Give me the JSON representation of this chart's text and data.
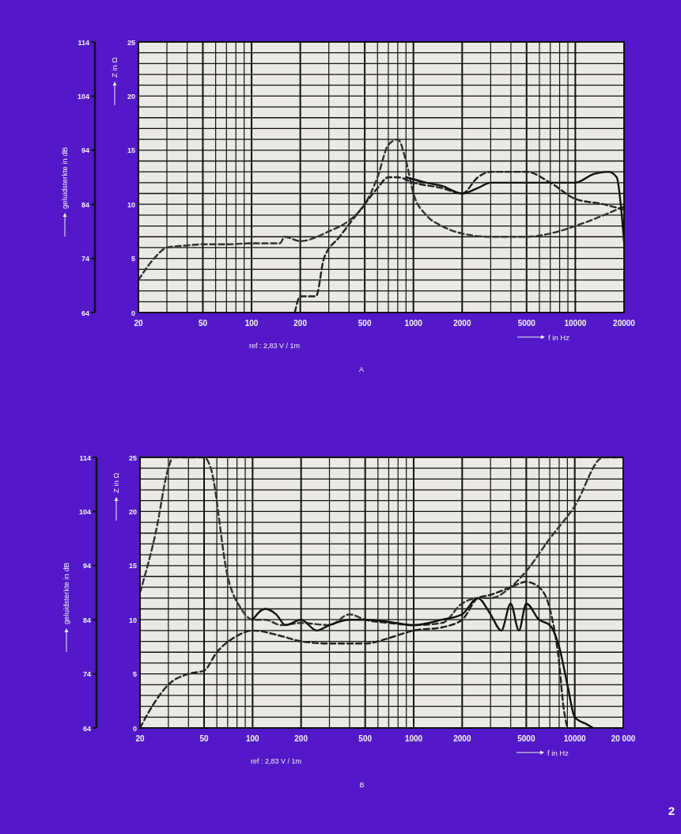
{
  "chart_data": [
    {
      "type": "line",
      "xlabel": "f in Hz",
      "ylabel": "geluidsterkte in dB",
      "y2label": "Z in Ω",
      "annotations": [
        "ref : 2,83 V / 1m",
        "A"
      ],
      "log": "x",
      "grid": true,
      "xlim": [
        20,
        20000
      ],
      "xticks": [
        20,
        50,
        100,
        200,
        500,
        1000,
        2000,
        5000,
        10000,
        20000
      ],
      "ylim": [
        64,
        114
      ],
      "yticks": [
        64,
        74,
        84,
        94,
        104,
        114
      ],
      "y2lim": [
        0,
        25
      ],
      "y2ticks": [
        0,
        5,
        10,
        15,
        20,
        25
      ],
      "series": [
        {
          "type": "line",
          "axis": "y2",
          "color": "#333333",
          "line_style": "dashed",
          "x": [
            20,
            25,
            30,
            40,
            50,
            70,
            100,
            150,
            160,
            200,
            300,
            400,
            500,
            600,
            700,
            800,
            900,
            1000,
            1200,
            1500,
            2000,
            3000,
            5000,
            7000,
            10000,
            15000,
            20000
          ],
          "values": [
            3,
            5,
            6,
            6.2,
            6.3,
            6.3,
            6.4,
            6.4,
            7,
            6.6,
            7.5,
            8.5,
            10,
            12.5,
            15.5,
            16,
            14,
            11,
            9,
            8,
            7.3,
            7,
            7,
            7.3,
            8,
            9,
            9.8
          ]
        },
        {
          "type": "line",
          "axis": "y",
          "color": "#222222",
          "line_style": "dashed",
          "x": [
            185,
            200,
            250,
            280,
            350,
            500,
            600,
            700,
            800,
            1000,
            1500,
            2000,
            2500,
            3000,
            5000,
            7000,
            10000,
            15000,
            20000
          ],
          "values": [
            64,
            67,
            67,
            74,
            78,
            84,
            87,
            89,
            89,
            88,
            87,
            86,
            89,
            90,
            90,
            88,
            85,
            84,
            83
          ]
        },
        {
          "type": "line",
          "axis": "y",
          "color": "#111111",
          "line_style": "solid",
          "x": [
            900,
            1200,
            1500,
            2000,
            2500,
            3000,
            5000,
            7000,
            10000,
            13000,
            16000,
            18000,
            20000
          ],
          "values": [
            89,
            88,
            87.4,
            86,
            87,
            88,
            88,
            88,
            88,
            89.6,
            90,
            89,
            77
          ]
        }
      ]
    },
    {
      "type": "line",
      "xlabel": "f in Hz",
      "ylabel": "geluidsterkte in dB",
      "y2label": "Z in Ω",
      "annotations": [
        "ref : 2,83 V / 1m",
        "B",
        "2"
      ],
      "log": "x",
      "grid": true,
      "xlim": [
        20,
        20000
      ],
      "xticks": [
        20,
        50,
        100,
        200,
        500,
        1000,
        2000,
        5000,
        10000,
        {
          "value": 20000,
          "label": "20 000"
        }
      ],
      "ylim": [
        64,
        114
      ],
      "yticks": [
        64,
        74,
        84,
        94,
        104,
        114
      ],
      "y2lim": [
        0,
        25
      ],
      "y2ticks": [
        0,
        5,
        10,
        15,
        20,
        25
      ],
      "series": [
        {
          "type": "line",
          "axis": "y2",
          "color": "#333333",
          "line_style": "dashed",
          "x": [
            20,
            25,
            30,
            32,
            50,
            55,
            70,
            85,
            100,
            120,
            150,
            200,
            300,
            400,
            500,
            700,
            1000,
            1500,
            2000,
            2500,
            3000,
            4000,
            5000,
            7000,
            10000,
            15000,
            20000
          ],
          "values": [
            12.5,
            18,
            24,
            25,
            25,
            24,
            14,
            11,
            10,
            10,
            9.5,
            9.7,
            9.5,
            10.5,
            10,
            9.7,
            9.5,
            9.7,
            11.5,
            12,
            12,
            13,
            14.5,
            17.5,
            20.5,
            25,
            25
          ]
        },
        {
          "type": "line",
          "axis": "y",
          "color": "#222222",
          "line_style": "dashed",
          "x": [
            20,
            25,
            30,
            40,
            50,
            60,
            80,
            100,
            150,
            200,
            300,
            500,
            700,
            1000,
            1500,
            2000,
            2500,
            3000,
            4000,
            5000,
            6000,
            7000,
            8000,
            8500,
            9000
          ],
          "values": [
            64,
            69,
            72,
            74,
            74.6,
            78,
            81,
            82,
            81,
            80,
            79.6,
            79.6,
            80.6,
            82,
            82.6,
            84,
            88,
            88.6,
            90,
            91,
            90,
            86,
            76,
            68,
            64
          ]
        },
        {
          "type": "line",
          "axis": "y",
          "color": "#111111",
          "line_style": "solid",
          "x": [
            100,
            120,
            140,
            160,
            200,
            250,
            300,
            400,
            500,
            700,
            1000,
            1500,
            2000,
            2500,
            3000,
            3500,
            4000,
            4500,
            5000,
            6000,
            7000,
            8000,
            9000,
            10000,
            12000,
            13000
          ],
          "values": [
            84,
            86,
            85,
            83,
            84,
            82,
            83,
            84,
            84,
            83.6,
            83,
            84,
            85,
            88,
            85,
            82,
            87,
            82,
            87,
            84,
            83,
            79,
            72,
            66,
            64.6,
            64
          ]
        }
      ]
    }
  ]
}
